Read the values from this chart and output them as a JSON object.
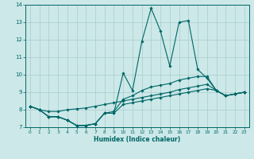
{
  "title": "",
  "xlabel": "Humidex (Indice chaleur)",
  "ylabel": "",
  "background_color": "#cce8e8",
  "grid_color": "#aacccc",
  "line_color": "#006666",
  "xlim": [
    -0.5,
    23.5
  ],
  "ylim": [
    7,
    14
  ],
  "xticks": [
    0,
    1,
    2,
    3,
    4,
    5,
    6,
    7,
    8,
    9,
    10,
    11,
    12,
    13,
    14,
    15,
    16,
    17,
    18,
    19,
    20,
    21,
    22,
    23
  ],
  "yticks": [
    7,
    8,
    9,
    10,
    11,
    12,
    13,
    14
  ],
  "lines": [
    {
      "x": [
        0,
        1,
        2,
        3,
        4,
        5,
        6,
        7,
        8,
        9,
        10,
        11,
        12,
        13,
        14,
        15,
        16,
        17,
        18,
        19,
        20,
        21,
        22,
        23
      ],
      "y": [
        8.2,
        8.0,
        7.6,
        7.6,
        7.4,
        7.1,
        7.1,
        7.2,
        7.8,
        7.8,
        10.1,
        9.1,
        11.9,
        13.8,
        12.5,
        10.5,
        13.0,
        13.1,
        10.3,
        9.8,
        9.1,
        8.8,
        8.9,
        9.0
      ]
    },
    {
      "x": [
        0,
        1,
        2,
        3,
        4,
        5,
        6,
        7,
        8,
        9,
        10,
        11,
        12,
        13,
        14,
        15,
        16,
        17,
        18,
        19,
        20,
        21,
        22,
        23
      ],
      "y": [
        8.2,
        8.0,
        7.6,
        7.6,
        7.4,
        7.1,
        7.1,
        7.2,
        7.8,
        7.9,
        8.6,
        8.8,
        9.1,
        9.3,
        9.4,
        9.5,
        9.7,
        9.8,
        9.9,
        9.9,
        9.1,
        8.8,
        8.9,
        9.0
      ]
    },
    {
      "x": [
        0,
        1,
        2,
        3,
        4,
        5,
        6,
        7,
        8,
        9,
        10,
        11,
        12,
        13,
        14,
        15,
        16,
        17,
        18,
        19,
        20,
        21,
        22,
        23
      ],
      "y": [
        8.2,
        8.0,
        7.9,
        7.9,
        8.0,
        8.05,
        8.1,
        8.2,
        8.3,
        8.4,
        8.5,
        8.6,
        8.7,
        8.8,
        8.9,
        9.0,
        9.15,
        9.25,
        9.35,
        9.45,
        9.1,
        8.8,
        8.9,
        9.0
      ]
    },
    {
      "x": [
        0,
        1,
        2,
        3,
        4,
        5,
        6,
        7,
        8,
        9,
        10,
        11,
        12,
        13,
        14,
        15,
        16,
        17,
        18,
        19,
        20,
        21,
        22,
        23
      ],
      "y": [
        8.2,
        8.0,
        7.6,
        7.6,
        7.4,
        7.1,
        7.1,
        7.2,
        7.8,
        7.8,
        8.3,
        8.4,
        8.5,
        8.6,
        8.7,
        8.8,
        8.9,
        9.0,
        9.1,
        9.2,
        9.1,
        8.8,
        8.9,
        9.0
      ]
    }
  ]
}
